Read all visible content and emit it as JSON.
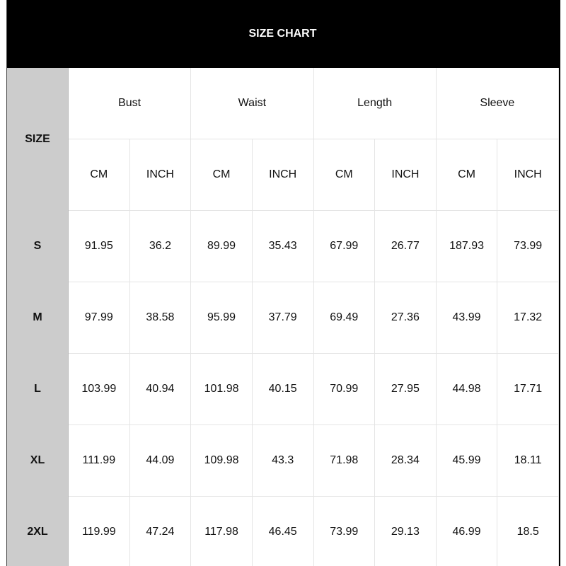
{
  "title": "SIZE CHART",
  "size_header": "SIZE",
  "groups": [
    "Bust",
    "Waist",
    "Length",
    "Sleeve"
  ],
  "units": [
    "CM",
    "INCH",
    "CM",
    "INCH",
    "CM",
    "INCH",
    "CM",
    "INCH"
  ],
  "rows": [
    {
      "size": "S",
      "values": [
        "91.95",
        "36.2",
        "89.99",
        "35.43",
        "67.99",
        "26.77",
        "187.93",
        "73.99"
      ]
    },
    {
      "size": "M",
      "values": [
        "97.99",
        "38.58",
        "95.99",
        "37.79",
        "69.49",
        "27.36",
        "43.99",
        "17.32"
      ]
    },
    {
      "size": "L",
      "values": [
        "103.99",
        "40.94",
        "101.98",
        "40.15",
        "70.99",
        "27.95",
        "44.98",
        "17.71"
      ]
    },
    {
      "size": "XL",
      "values": [
        "111.99",
        "44.09",
        "109.98",
        "43.3",
        "71.98",
        "28.34",
        "45.99",
        "18.11"
      ]
    },
    {
      "size": "2XL",
      "values": [
        "119.99",
        "47.24",
        "117.98",
        "46.45",
        "73.99",
        "29.13",
        "46.99",
        "18.5"
      ]
    }
  ]
}
